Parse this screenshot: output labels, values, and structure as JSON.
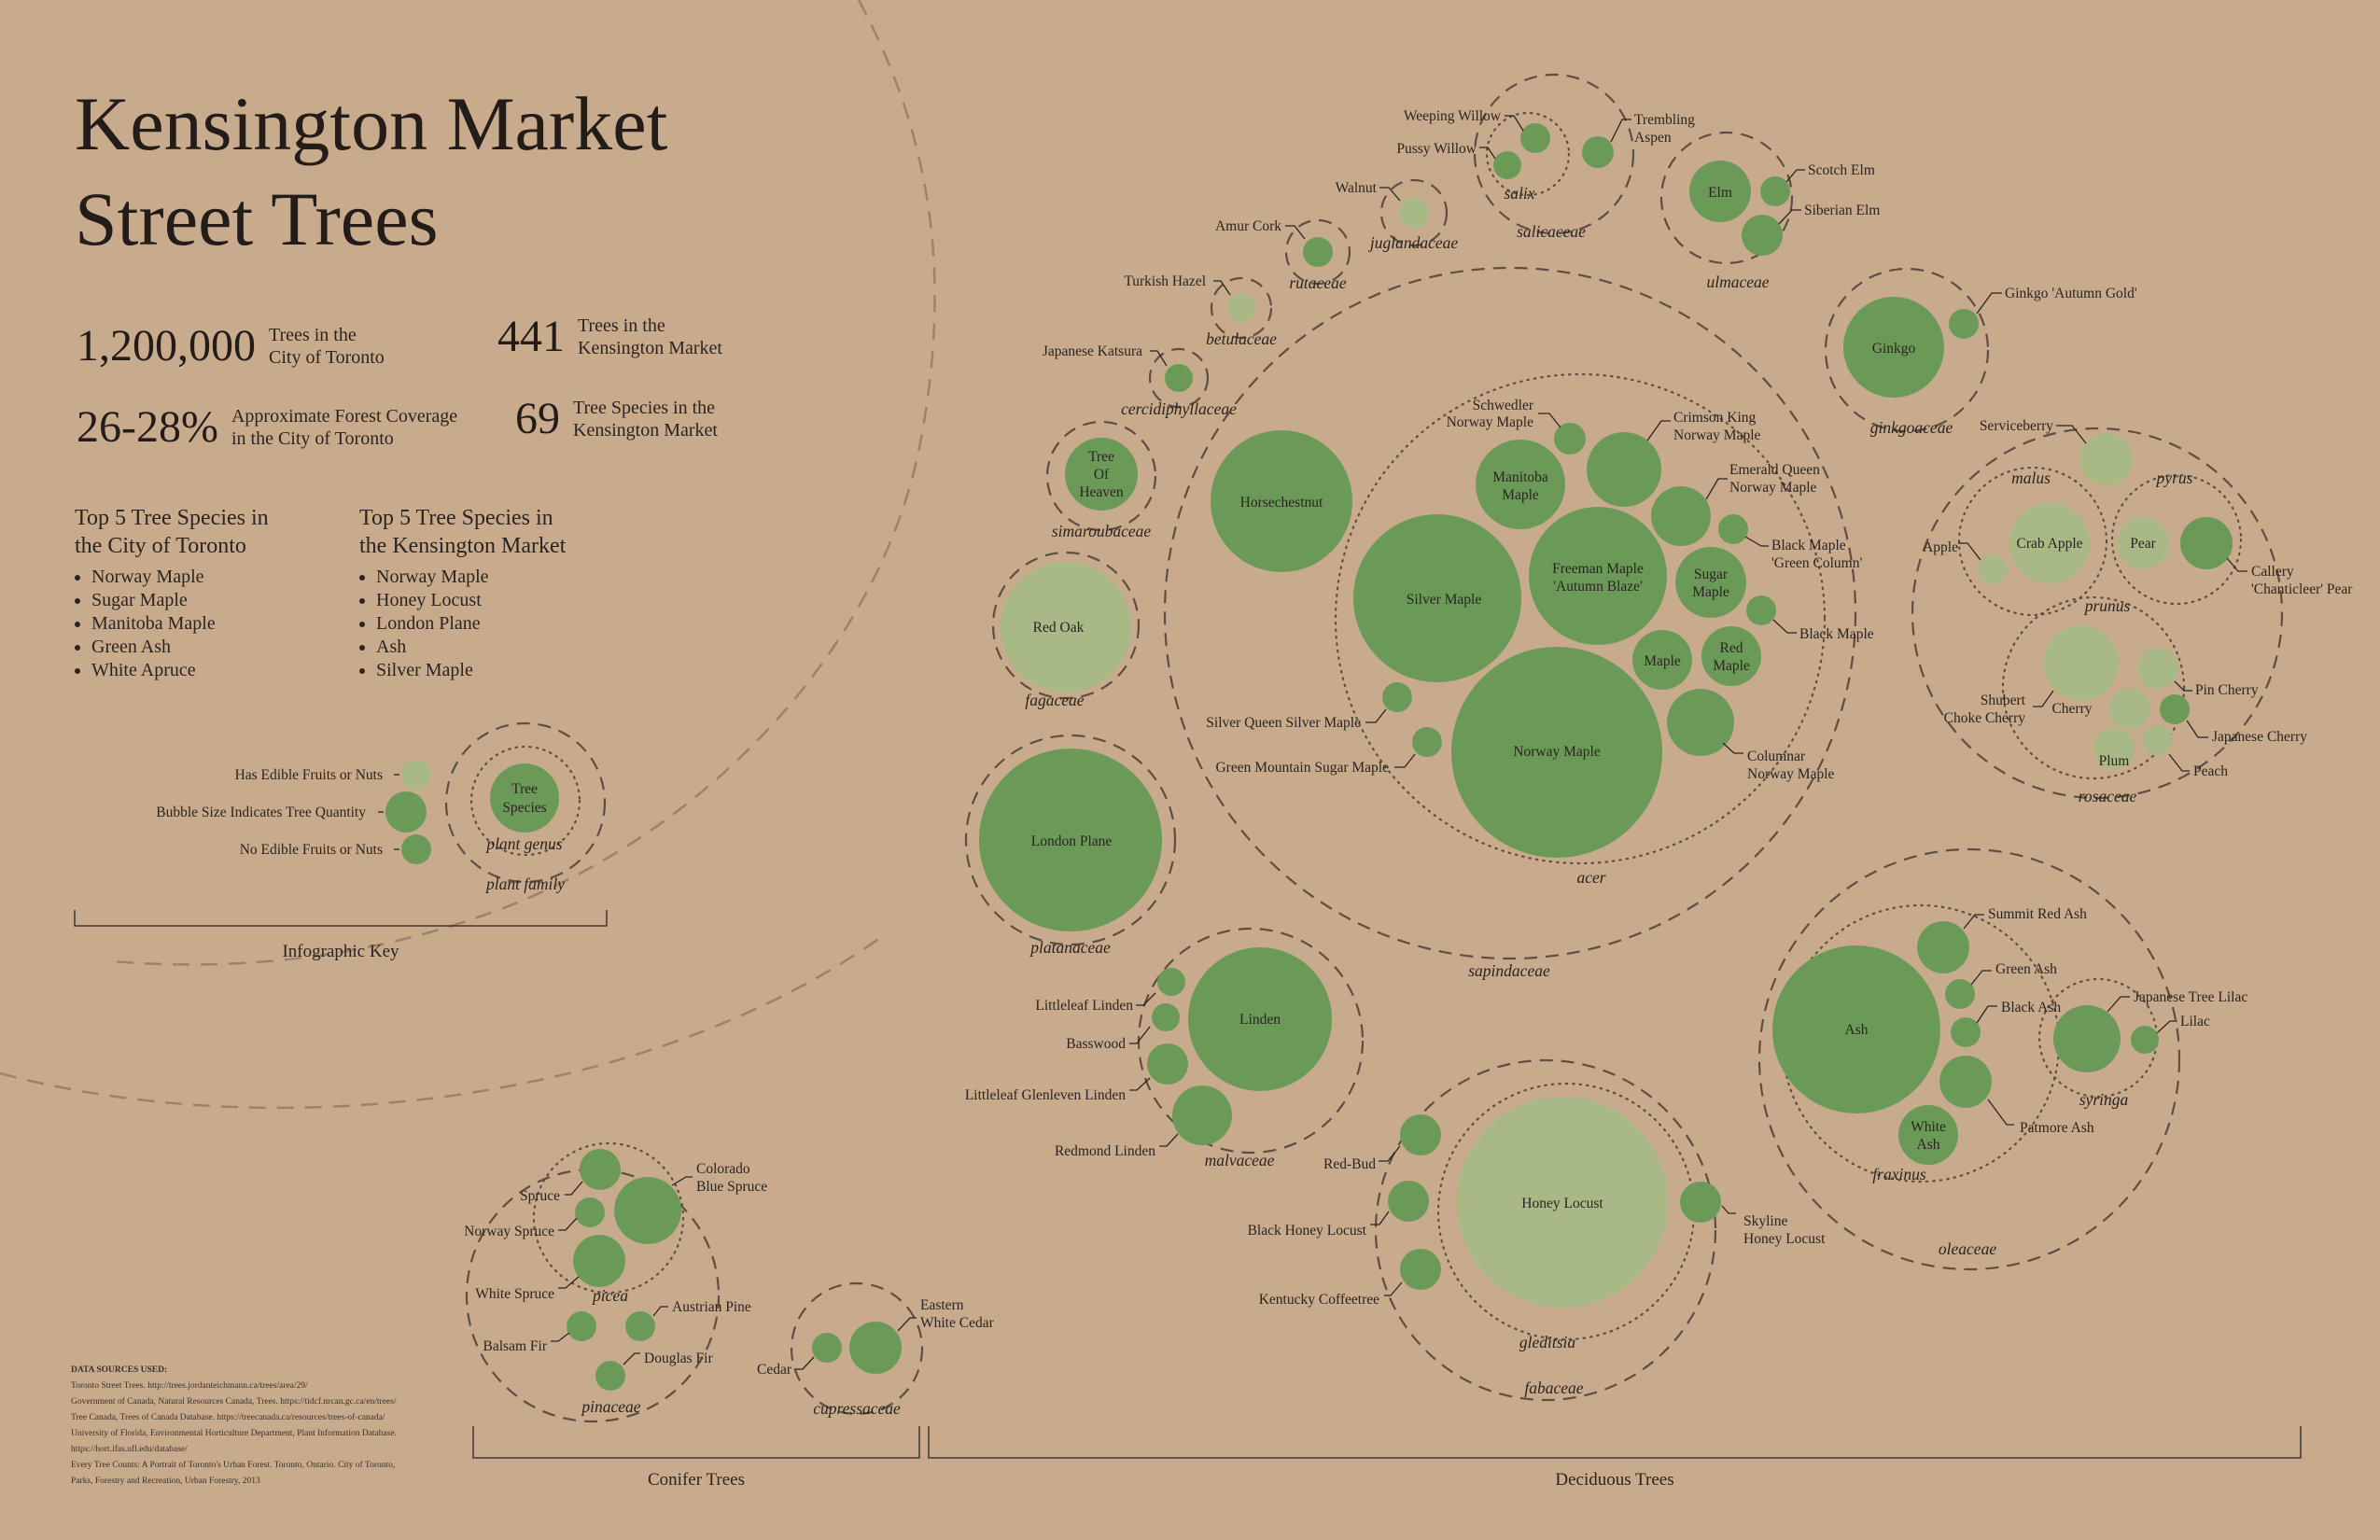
{
  "title": {
    "line1": "Kensington Market",
    "line2": "Street Trees"
  },
  "stats": [
    {
      "value": "1,200,000",
      "label": "Trees in the\nCity of Toronto"
    },
    {
      "value": "441",
      "label": "Trees in the\nKensington Market"
    },
    {
      "value": "26-28%",
      "label": "Approximate Forest Coverage\nin the City of Toronto"
    },
    {
      "value": "69",
      "label": "Tree Species in the\nKensington Market"
    }
  ],
  "top5_toronto": {
    "heading": "Top 5 Tree Species in\nthe City of Toronto",
    "items": [
      "Norway Maple",
      "Sugar Maple",
      "Manitoba Maple",
      "Green Ash",
      "White Apruce"
    ]
  },
  "top5_kensington": {
    "heading": "Top 5 Tree Species in\nthe Kensington Market",
    "items": [
      "Norway Maple",
      "Honey Locust",
      "London Plane",
      "Ash",
      "Silver Maple"
    ]
  },
  "key": {
    "edible": "Has Edible Fruits or Nuts",
    "size": "Bubble Size Indicates Tree Quantity",
    "no_edible": "No Edible Fruits or Nuts",
    "species_line1": "Tree",
    "species_line2": "Species",
    "genus": "plant genus",
    "family": "plant family",
    "caption": "Infographic Key"
  },
  "colors": {
    "background": "#c8ab8c",
    "no_edible": "#6b9a58",
    "edible": "#a9b985",
    "stroke": "#5e4e43"
  },
  "sources": {
    "heading": "DATA SOURCES USED:",
    "lines": [
      "Toronto Street Trees. http://trees.jordanteichmann.ca/trees/area/29/",
      "Government of Canada, Natural Resources Canada, Trees. https://tidcf.nrcan.gc.ca/en/trees/",
      "Tree Canada, Trees of Canada Database. https://treecanada.ca/resources/trees-of-canada/",
      "University of Florida, Environmental Horticulture Department, Plant Information Database.",
      "https://hort.ifas.ufl.edu/database/",
      "Every Tree Counts: A Portrait of Toronto's Urban Forest. Toronto, Ontario. City of Toronto,",
      "Parks, Forestry and Recreation, Urban Forestry, 2013"
    ]
  },
  "group_labels": {
    "conifer": "Conifer Trees",
    "deciduous": "Deciduous Trees"
  },
  "families": [
    {
      "name": "salicaceae",
      "genera": [
        {
          "name": "salix",
          "species": [
            "Weeping Willow",
            "Pussy Willow"
          ]
        }
      ],
      "species": [
        "Trembling Aspen"
      ]
    },
    {
      "name": "juglandaceae",
      "species": [
        "Walnut"
      ]
    },
    {
      "name": "rutaceae",
      "species": [
        "Amur Cork"
      ]
    },
    {
      "name": "betulaceae",
      "species": [
        "Turkish Hazel"
      ]
    },
    {
      "name": "cercidiphyllaceae",
      "species": [
        "Japanese Katsura"
      ]
    },
    {
      "name": "simaroubaceae",
      "species": [
        "Tree Of Heaven"
      ]
    },
    {
      "name": "fagaceae",
      "species": [
        "Red Oak"
      ]
    },
    {
      "name": "platanaceae",
      "species": [
        "London Plane"
      ]
    },
    {
      "name": "ulmaceae",
      "species": [
        "Elm",
        "Scotch Elm",
        "Siberian Elm"
      ]
    },
    {
      "name": "ginkgoaceae",
      "species": [
        "Ginkgo",
        "Ginkgo 'Autumn Gold'"
      ]
    },
    {
      "name": "sapindaceae",
      "species": [
        "Horsechestnut"
      ],
      "genera": [
        {
          "name": "acer",
          "species": [
            "Schwedler Norway Maple",
            "Crimson King Norway Maple",
            "Manitoba Maple",
            "Emerald Queen Norway Maple",
            "Black Maple 'Green Column'",
            "Silver Maple",
            "Freeman Maple 'Autumn Blaze'",
            "Sugar Maple",
            "Black Maple",
            "Maple",
            "Red Maple",
            "Silver Queen Silver Maple",
            "Green Mountain Sugar Maple",
            "Norway Maple",
            "Columnar Norway Maple"
          ]
        }
      ]
    },
    {
      "name": "rosaceae",
      "species": [
        "Serviceberry"
      ],
      "genera": [
        {
          "name": "malus",
          "species": [
            "Apple",
            "Crab Apple"
          ]
        },
        {
          "name": "pyrus",
          "species": [
            "Pear",
            "Callery 'Chanticleer' Pear"
          ]
        },
        {
          "name": "prunus",
          "species": [
            "Shubert Choke Cherry",
            "Cherry",
            "Plum",
            "Pin Cherry",
            "Japanese Cherry",
            "Peach"
          ]
        }
      ]
    },
    {
      "name": "malvaceae",
      "species": [
        "Linden",
        "Littleleaf Linden",
        "Basswood",
        "Littleleaf Glenleven Linden",
        "Redmond Linden"
      ]
    },
    {
      "name": "fabaceae",
      "species": [
        "Red-Bud",
        "Black Honey Locust",
        "Kentucky Coffeetree"
      ],
      "genera": [
        {
          "name": "gleditsia",
          "species": [
            "Honey Locust",
            "Skyline Honey Locust"
          ]
        }
      ]
    },
    {
      "name": "oleaceae",
      "genera": [
        {
          "name": "fraxinus",
          "species": [
            "Ash",
            "Summit Red Ash",
            "Green Ash",
            "Black Ash",
            "White Ash",
            "Patmore Ash"
          ]
        },
        {
          "name": "syringa",
          "species": [
            "Japanese Tree Lilac",
            "Lilac"
          ]
        }
      ]
    },
    {
      "name": "pinaceae",
      "genera": [
        {
          "name": "picea",
          "species": [
            "Spruce",
            "Colorado Blue Spruce",
            "Norway Spruce",
            "White Spruce"
          ]
        }
      ],
      "species": [
        "Austrian Pine",
        "Balsam Fir",
        "Douglas Fir"
      ]
    },
    {
      "name": "cupressaceae",
      "species": [
        "Cedar",
        "Eastern White Cedar"
      ]
    }
  ]
}
